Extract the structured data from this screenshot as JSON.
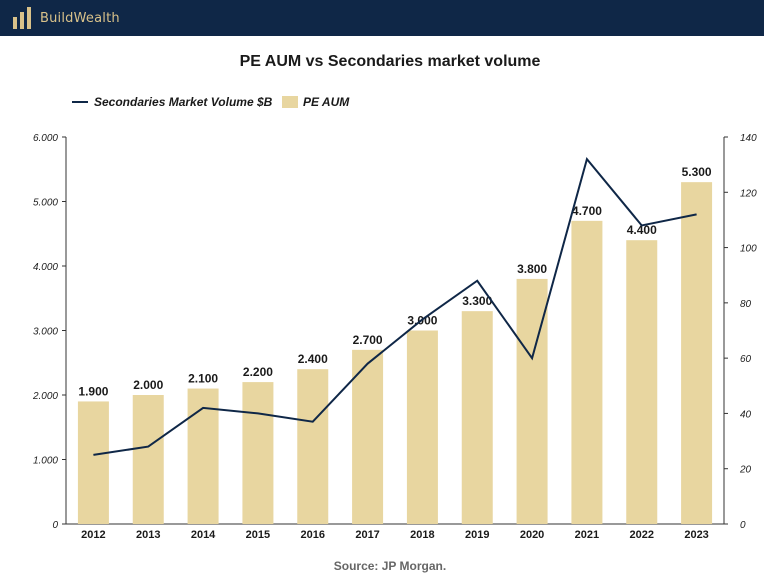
{
  "brand": {
    "name": "BuildWealth",
    "logo_color": "#d9c28a",
    "header_bg": "#0f2747"
  },
  "chart_data": {
    "type": "bar",
    "title": "PE AUM vs Secondaries market volume",
    "categories": [
      "2012",
      "2013",
      "2014",
      "2015",
      "2016",
      "2017",
      "2018",
      "2019",
      "2020",
      "2021",
      "2022",
      "2023"
    ],
    "series": [
      {
        "name": "PE AUM",
        "type": "bar",
        "axis": "left",
        "color": "#e8d6a0",
        "values": [
          1.9,
          2.0,
          2.1,
          2.2,
          2.4,
          2.7,
          3.0,
          3.3,
          3.8,
          4.7,
          4.4,
          5.3
        ],
        "data_labels": [
          "1.900",
          "2.000",
          "2.100",
          "2.200",
          "2.400",
          "2.700",
          "3.000",
          "3.300",
          "3.800",
          "4.700",
          "4.400",
          "5.300"
        ]
      },
      {
        "name": "Secondaries Market Volume $B",
        "type": "line",
        "axis": "right",
        "color": "#0f2747",
        "values": [
          25,
          28,
          42,
          40,
          37,
          58,
          74,
          88,
          60,
          132,
          108,
          112
        ]
      }
    ],
    "y_left": {
      "ylim": [
        0,
        6
      ],
      "ticks": [
        "0",
        "1.000",
        "2.000",
        "3.000",
        "4.000",
        "5.000",
        "6.000"
      ]
    },
    "y_right": {
      "ylim": [
        0,
        140
      ],
      "ticks": [
        "0",
        "20",
        "40",
        "60",
        "80",
        "100",
        "120",
        "140"
      ]
    },
    "legend": {
      "position": "top-left"
    },
    "grid": false
  },
  "source": "Source: JP Morgan."
}
